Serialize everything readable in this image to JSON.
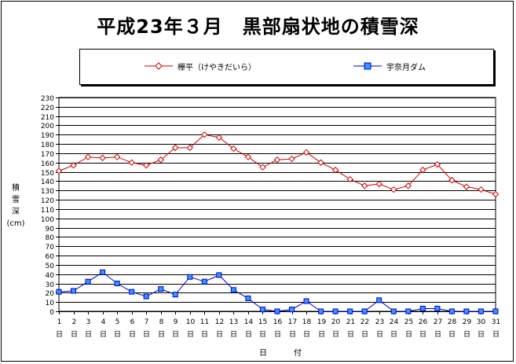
{
  "chart_data": {
    "type": "line",
    "title": "平成23年３月　黒部扇状地の積雪深",
    "xlabel": "日　付",
    "ylabel": [
      "積",
      "雪",
      "深",
      "(cm)"
    ],
    "ylim": [
      0,
      230
    ],
    "ytick_step": 10,
    "grid": true,
    "legend_position": "top",
    "categories": [
      "1",
      "2",
      "3",
      "4",
      "5",
      "6",
      "7",
      "8",
      "9",
      "10",
      "11",
      "12",
      "13",
      "14",
      "15",
      "16",
      "17",
      "18",
      "19",
      "20",
      "21",
      "22",
      "23",
      "24",
      "25",
      "26",
      "27",
      "28",
      "29",
      "30",
      "31"
    ],
    "day_suffix": "日",
    "series": [
      {
        "name": "欅平（けやきだいら）",
        "color": "#cc0000",
        "marker": "diamond",
        "values": [
          151,
          157,
          166,
          165,
          166,
          160,
          157,
          163,
          176,
          176,
          190,
          187,
          175,
          166,
          155,
          163,
          164,
          171,
          160,
          152,
          142,
          135,
          137,
          131,
          135,
          152,
          158,
          141,
          134,
          131,
          126
        ]
      },
      {
        "name": "宇奈月ダム",
        "color": "#0000cc",
        "marker": "square",
        "marker_fill": "#3399ff",
        "values": [
          21,
          22,
          32,
          42,
          30,
          21,
          16,
          24,
          18,
          37,
          32,
          39,
          23,
          14,
          2,
          0,
          2,
          11,
          0,
          0,
          0,
          0,
          12,
          0,
          0,
          3,
          3,
          0,
          0,
          0,
          0
        ]
      }
    ]
  }
}
